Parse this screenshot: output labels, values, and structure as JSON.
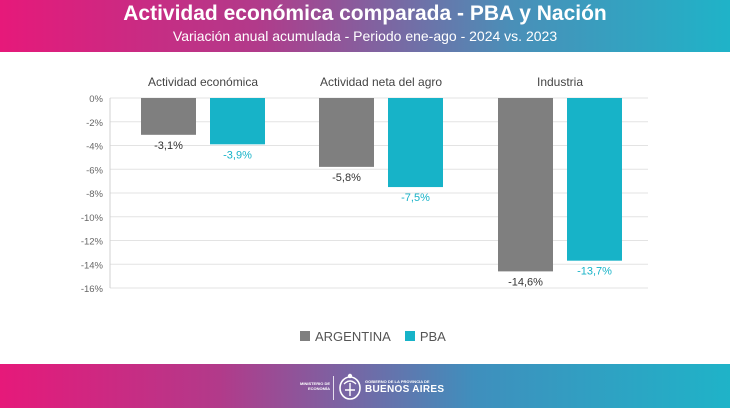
{
  "header": {
    "title": "Actividad económica comparada - PBA y Nación",
    "subtitle": "Variación anual acumulada - Periodo ene-ago - 2024 vs. 2023"
  },
  "footer": {
    "ministry_text": "MINISTERIO DE ECONOMÍA",
    "gov_text": "GOBIERNO DE LA PROVINCIA DE",
    "province_text": "BUENOS AIRES",
    "emblem_icon": "provincial-coat-of-arms-icon"
  },
  "colors": {
    "argentina": "#7f7f7f",
    "pba": "#17b3c8",
    "header_start": "#e6197a",
    "header_end": "#1fb3c8"
  },
  "chart_data": {
    "type": "bar",
    "categories": [
      "Actividad económica",
      "Actividad neta del agro",
      "Industria"
    ],
    "series": [
      {
        "name": "ARGENTINA",
        "values": [
          -3.1,
          -5.8,
          -14.6
        ],
        "labels": [
          "-3,1%",
          "-5,8%",
          "-14,6%"
        ],
        "color": "#7f7f7f"
      },
      {
        "name": "PBA",
        "values": [
          -3.9,
          -7.5,
          -13.7
        ],
        "labels": [
          "-3,9%",
          "-7,5%",
          "-13,7%"
        ],
        "color": "#17b3c8"
      }
    ],
    "yticks": [
      0,
      -2,
      -4,
      -6,
      -8,
      -10,
      -12,
      -14,
      -16
    ],
    "ytick_labels": [
      "0%",
      "-2%",
      "-4%",
      "-6%",
      "-8%",
      "-10%",
      "-12%",
      "-14%",
      "-16%"
    ],
    "ylim": [
      -16,
      0
    ],
    "grid": true,
    "legend_position": "bottom-center"
  }
}
